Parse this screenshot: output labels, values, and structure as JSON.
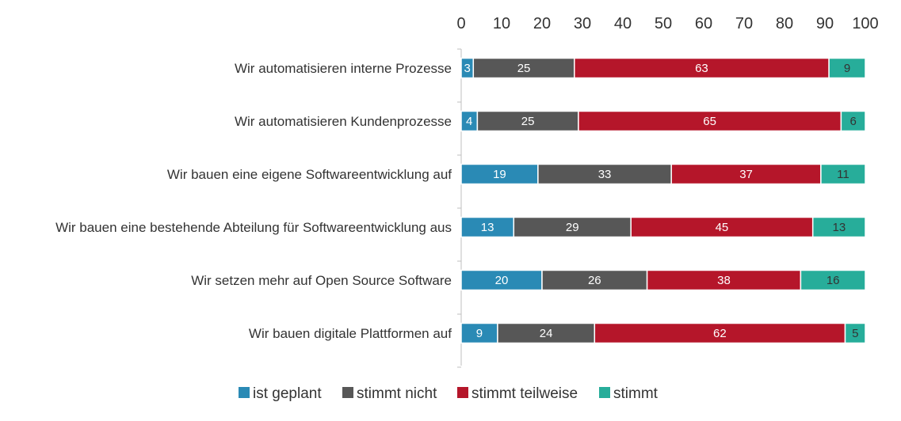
{
  "chart_data": {
    "type": "bar",
    "orientation": "horizontal",
    "stacked": true,
    "categories": [
      "Wir automatisieren interne Prozesse",
      "Wir automatisieren Kundenprozesse",
      "Wir bauen eine eigene Softwareentwicklung auf",
      "Wir bauen eine bestehende Abteilung für Softwareentwicklung aus",
      "Wir setzen mehr auf Open Source Software",
      "Wir bauen digitale Plattformen auf"
    ],
    "series": [
      {
        "name": "ist geplant",
        "color": "#2a8ab5",
        "label_color": "#ffffff",
        "values": [
          3,
          4,
          19,
          13,
          20,
          9
        ]
      },
      {
        "name": "stimmt nicht",
        "color": "#575757",
        "label_color": "#ffffff",
        "values": [
          25,
          25,
          33,
          29,
          26,
          24
        ]
      },
      {
        "name": "stimmt teilweise",
        "color": "#b5162a",
        "label_color": "#ffffff",
        "values": [
          63,
          65,
          37,
          45,
          38,
          62
        ]
      },
      {
        "name": "stimmt",
        "color": "#27ad9a",
        "label_color": "#333333",
        "values": [
          9,
          6,
          11,
          13,
          16,
          5
        ]
      }
    ],
    "xlim": [
      0,
      100
    ],
    "xticks": [
      0,
      10,
      20,
      30,
      40,
      50,
      60,
      70,
      80,
      90,
      100
    ],
    "x_axis_position": "top",
    "grid": false,
    "legend_position": "bottom",
    "title": "",
    "xlabel": "",
    "ylabel": ""
  }
}
